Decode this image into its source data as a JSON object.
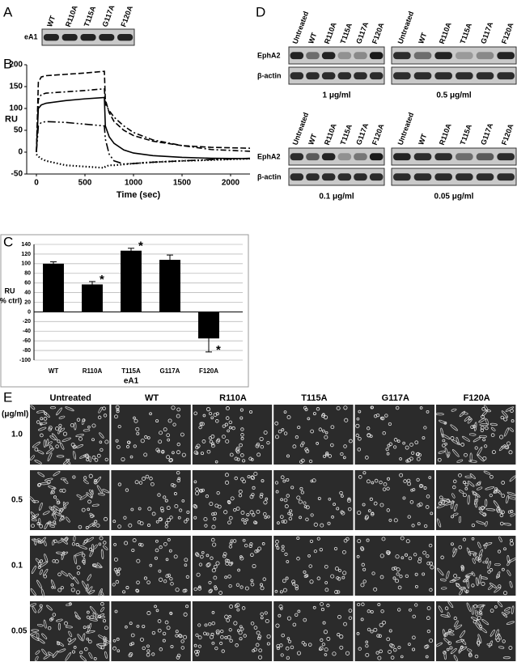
{
  "panel_labels": [
    "A",
    "B",
    "C",
    "D",
    "E"
  ],
  "panel_a": {
    "row_label": "eA1",
    "lanes": [
      "WT",
      "R110A",
      "T115A",
      "G117A",
      "F120A"
    ]
  },
  "chart_data": [
    {
      "type": "line",
      "xlabel": "Time (sec)",
      "ylabel": "RU",
      "x": [
        0,
        20,
        50,
        100,
        300,
        500,
        700,
        710,
        750,
        800,
        900,
        1000,
        1200,
        1500,
        1800,
        2200
      ],
      "series": [
        {
          "color": "#000000",
          "style": "dashed",
          "values": [
            0,
            160,
            172,
            175,
            178,
            181,
            185,
            120,
            90,
            70,
            50,
            38,
            25,
            15,
            11,
            9
          ]
        },
        {
          "color": "#000000",
          "style": "dashdot",
          "values": [
            0,
            120,
            132,
            135,
            138,
            141,
            145,
            110,
            95,
            80,
            60,
            45,
            28,
            15,
            6,
            2
          ]
        },
        {
          "color": "#000000",
          "style": "solid",
          "values": [
            0,
            100,
            108,
            112,
            118,
            122,
            125,
            60,
            35,
            20,
            5,
            -2,
            -8,
            -12,
            -14,
            -15
          ]
        },
        {
          "color": "#000000",
          "style": "longdashdot",
          "values": [
            0,
            60,
            68,
            70,
            68,
            64,
            60,
            30,
            -5,
            -20,
            -27,
            -26,
            -23,
            -20,
            -17,
            -14
          ]
        },
        {
          "color": "#000000",
          "style": "dotted",
          "values": [
            -5,
            -10,
            -15,
            -20,
            -30,
            -33,
            -36,
            -33,
            -30,
            -30,
            -28,
            -26,
            -23,
            -20,
            -18,
            -15
          ]
        }
      ],
      "xlim": [
        -100,
        2200
      ],
      "xticks": [
        0,
        500,
        1000,
        1500,
        2000
      ],
      "ylim": [
        -50,
        200
      ],
      "yticks": [
        -50,
        0,
        50,
        100,
        150,
        200
      ],
      "grid": false
    },
    {
      "type": "bar",
      "xlabel": "eA1",
      "ylabel": [
        "RU",
        "(% ctrl)"
      ],
      "categories": [
        "WT",
        "R110A",
        "T115A",
        "G117A",
        "F120A"
      ],
      "values": [
        100,
        57,
        127,
        108,
        -55
      ],
      "errors": [
        4,
        6,
        5,
        10,
        28
      ],
      "markers": [
        null,
        "*",
        "*",
        null,
        "*"
      ],
      "color": "#000000",
      "ylim": [
        -100,
        140
      ],
      "yticks": [
        -100,
        -80,
        -60,
        -40,
        -20,
        0,
        20,
        40,
        60,
        80,
        100,
        120,
        140
      ],
      "grid": true
    }
  ],
  "panel_d": {
    "lanes": [
      "Untreated",
      "WT",
      "R110A",
      "T115A",
      "G117A",
      "F120A"
    ],
    "rows": [
      "EphA2",
      "β-actin"
    ],
    "concentrations": [
      "1 μg/ml",
      "0.5 μg/ml",
      "0.1 μg/ml",
      "0.05 μg/ml"
    ]
  },
  "panel_e": {
    "columns": [
      "Untreated",
      "WT",
      "R110A",
      "T115A",
      "G117A",
      "F120A"
    ],
    "unit_label": "(μg/ml)",
    "rows": [
      "1.0",
      "0.5",
      "0.1",
      "0.05"
    ]
  }
}
